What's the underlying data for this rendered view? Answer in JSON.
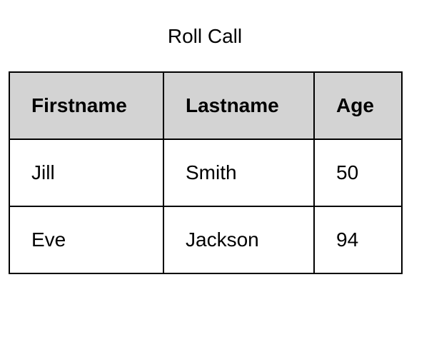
{
  "title": "Roll Call",
  "table": {
    "headers": [
      "Firstname",
      "Lastname",
      "Age"
    ],
    "rows": [
      [
        "Jill",
        "Smith",
        "50"
      ],
      [
        "Eve",
        "Jackson",
        "94"
      ]
    ]
  },
  "colors": {
    "header_background": "#d3d3d3",
    "border": "#000000",
    "text": "#000000",
    "page_background": "#ffffff"
  }
}
